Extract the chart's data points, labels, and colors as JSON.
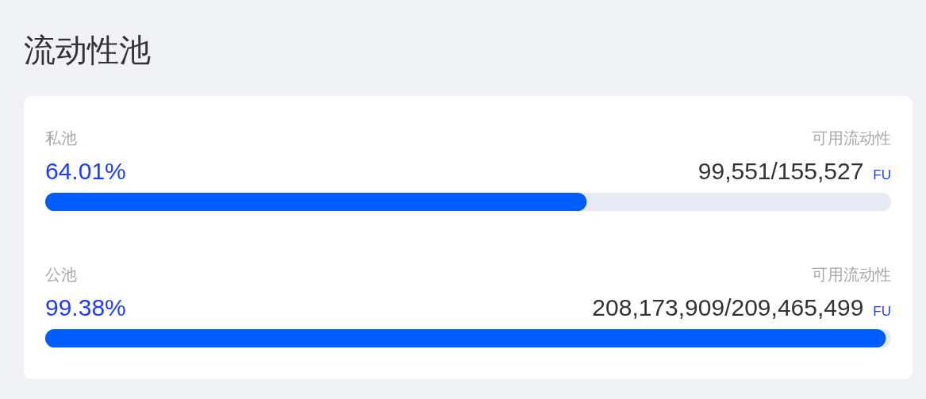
{
  "chart_data": {
    "type": "bar",
    "orientation": "horizontal",
    "title": "流动性池",
    "categories": [
      "私池",
      "公池"
    ],
    "values": [
      64.01,
      99.38
    ],
    "color": "#005cfa",
    "value_labels": [
      "64.01%",
      "99.38%"
    ],
    "xlim": [
      0,
      100
    ],
    "annotations": [
      "可用流动性",
      "99,551/155,527 FU",
      "可用流动性",
      "208,173,909/209,465,499 FU"
    ]
  }
}
